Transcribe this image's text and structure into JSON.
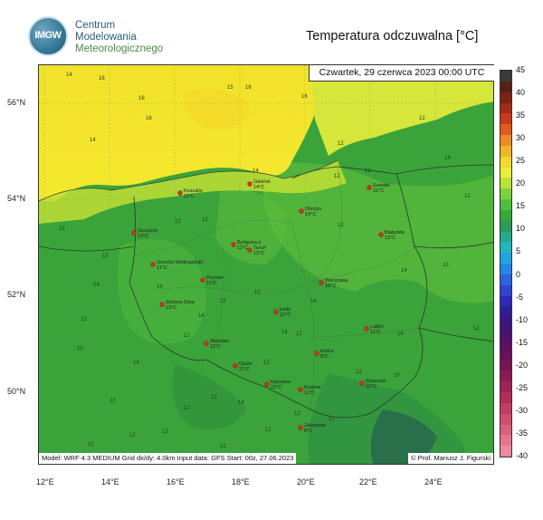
{
  "header": {
    "org_line1": "Centrum",
    "org_line2": "Modelowania",
    "org_line3": "Meteorologicznego",
    "logo_text": "IMGW",
    "title": "Temperatura odczuwalna [°C]"
  },
  "date_label": "Czwartek, 29 czerwca 2023 00:00 UTC",
  "footer_left": "Model: WRF 4.3 MEDIUM   Grid dx/dy: 4.0km   Input data: GFS   Start: 00z, 27.06.2023",
  "footer_right": "© Prof. Mariusz J. Figurski",
  "lat_labels": [
    "56°N",
    "54°N",
    "52°N",
    "50°N"
  ],
  "lon_labels": [
    "12°E",
    "14°E",
    "16°E",
    "18°E",
    "20°E",
    "22°E",
    "24°E"
  ],
  "colorbar": {
    "ticks": [
      "45",
      "40",
      "35",
      "30",
      "25",
      "20",
      "15",
      "10",
      "5",
      "0",
      "-5",
      "-10",
      "-15",
      "-20",
      "-25",
      "-30",
      "-35",
      "-40"
    ],
    "colors": [
      "#3a3a3a",
      "#5a1f14",
      "#7a2416",
      "#a42a17",
      "#c93a1a",
      "#e35a1e",
      "#ef8a23",
      "#f2b325",
      "#f1da2b",
      "#e9ef36",
      "#b8e43a",
      "#7fd23c",
      "#4fbf3e",
      "#36a83a",
      "#2c9a55",
      "#24aa8c",
      "#21b8c0",
      "#1fa6e0",
      "#2487ea",
      "#2b63e0",
      "#2f43d0",
      "#2c2ab8",
      "#301d98",
      "#3d1580",
      "#4c1170",
      "#5b0f65",
      "#6a0f5c",
      "#7a1356",
      "#8d1a55",
      "#a02357",
      "#b22d5c",
      "#c43b64",
      "#d24c6f",
      "#de5f7c",
      "#e8748b",
      "#ef8a9b"
    ]
  },
  "cities": [
    {
      "name": "Gdańsk",
      "temp": "14°C"
    },
    {
      "name": "Koszalin",
      "temp": "11°C"
    },
    {
      "name": "Suwałki",
      "temp": "12°C"
    },
    {
      "name": "Olsztyn",
      "temp": "14°C"
    },
    {
      "name": "Szczecin",
      "temp": "13°C"
    },
    {
      "name": "Bydgoszcz",
      "temp": "12°C"
    },
    {
      "name": "Toruń",
      "temp": "13°C"
    },
    {
      "name": "Białystok",
      "temp": "13°C"
    },
    {
      "name": "Gorzów Wielkopolski",
      "temp": "11°C"
    },
    {
      "name": "Poznań",
      "temp": "11°C"
    },
    {
      "name": "Warszawa",
      "temp": "15°C"
    },
    {
      "name": "Zielona Góra",
      "temp": "13°C"
    },
    {
      "name": "Łódź",
      "temp": "12°C"
    },
    {
      "name": "Lublin",
      "temp": "11°C"
    },
    {
      "name": "Wrocław",
      "temp": "11°C"
    },
    {
      "name": "Kielce",
      "temp": "9°C"
    },
    {
      "name": "Opole",
      "temp": "11°C"
    },
    {
      "name": "Katowice",
      "temp": "12°C"
    },
    {
      "name": "Kraków",
      "temp": "11°C"
    },
    {
      "name": "Rzeszów",
      "temp": "10°C"
    },
    {
      "name": "Zakopane",
      "temp": "8°C"
    }
  ],
  "isolines": [
    "16",
    "16",
    "15",
    "16",
    "16",
    "16",
    "14",
    "14",
    "12",
    "14",
    "13",
    "12",
    "12",
    "14",
    "12",
    "12",
    "14",
    "12",
    "12",
    "14",
    "12",
    "14",
    "12",
    "12",
    "12",
    "12",
    "14",
    "12",
    "14",
    "12",
    "14",
    "12",
    "12",
    "12",
    "12",
    "14",
    "12",
    "12",
    "14",
    "12",
    "12",
    "14",
    "10",
    "12",
    "12",
    "12",
    "12",
    "12",
    "12",
    "12"
  ],
  "colors": {
    "sea_yellow": "#f3e52b",
    "coast_yellow": "#e7ea2f",
    "land_green": "#3aa33a",
    "land_light": "#55b83a",
    "mountain_dark": "#2f7e4a"
  }
}
